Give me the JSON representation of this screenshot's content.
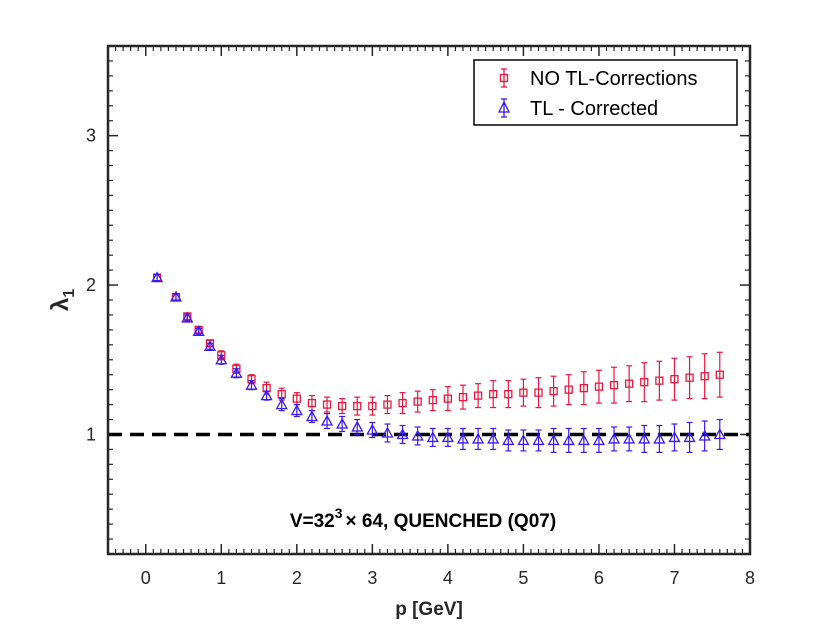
{
  "chart_data": {
    "type": "scatter",
    "xlabel": "p [GeV]",
    "ylabel": "λ",
    "ylabel_subscript": "1",
    "xlim": [
      -0.5,
      8
    ],
    "ylim": [
      0.2,
      3.6
    ],
    "xticks": [
      0,
      1,
      2,
      3,
      4,
      5,
      6,
      7,
      8
    ],
    "xtick_labels": [
      "0",
      "1",
      "2",
      "3",
      "4",
      "5",
      "6",
      "7",
      "8"
    ],
    "yticks": [
      1,
      2,
      3
    ],
    "ytick_labels": [
      "1",
      "2",
      "3"
    ],
    "reference_line": {
      "y": 1,
      "style": "dashed",
      "color": "#000000"
    },
    "annotation": {
      "prefix": "V=32",
      "superscript": "3",
      "suffix": "× 64, QUENCHED (Q07)"
    },
    "legend_position": "top-right",
    "series": [
      {
        "name": "NO TL-Corrections",
        "marker": "square",
        "color": "#e8173e",
        "x": [
          0.15,
          0.4,
          0.55,
          0.7,
          0.85,
          1.0,
          1.2,
          1.4,
          1.6,
          1.8,
          2.0,
          2.2,
          2.4,
          2.6,
          2.8,
          3.0,
          3.2,
          3.4,
          3.6,
          3.8,
          4.0,
          4.2,
          4.4,
          4.6,
          4.8,
          5.0,
          5.2,
          5.4,
          5.6,
          5.8,
          6.0,
          6.2,
          6.4,
          6.6,
          6.8,
          7.0,
          7.2,
          7.4,
          7.6
        ],
        "y": [
          2.05,
          1.92,
          1.79,
          1.7,
          1.61,
          1.53,
          1.44,
          1.37,
          1.31,
          1.27,
          1.24,
          1.21,
          1.2,
          1.19,
          1.19,
          1.19,
          1.2,
          1.21,
          1.22,
          1.23,
          1.24,
          1.25,
          1.26,
          1.27,
          1.27,
          1.28,
          1.28,
          1.29,
          1.3,
          1.31,
          1.32,
          1.33,
          1.34,
          1.35,
          1.36,
          1.37,
          1.38,
          1.39,
          1.4
        ],
        "err": [
          0.02,
          0.02,
          0.02,
          0.02,
          0.02,
          0.03,
          0.03,
          0.03,
          0.04,
          0.04,
          0.04,
          0.05,
          0.05,
          0.05,
          0.06,
          0.06,
          0.06,
          0.07,
          0.07,
          0.07,
          0.08,
          0.08,
          0.08,
          0.09,
          0.09,
          0.09,
          0.1,
          0.1,
          0.1,
          0.11,
          0.11,
          0.12,
          0.12,
          0.13,
          0.13,
          0.14,
          0.14,
          0.15,
          0.15
        ]
      },
      {
        "name": "TL - Corrected",
        "marker": "triangle",
        "color": "#3a18f0",
        "x": [
          0.15,
          0.4,
          0.55,
          0.7,
          0.85,
          1.0,
          1.2,
          1.4,
          1.6,
          1.8,
          2.0,
          2.2,
          2.4,
          2.6,
          2.8,
          3.0,
          3.2,
          3.4,
          3.6,
          3.8,
          4.0,
          4.2,
          4.4,
          4.6,
          4.8,
          5.0,
          5.2,
          5.4,
          5.6,
          5.8,
          6.0,
          6.2,
          6.4,
          6.6,
          6.8,
          7.0,
          7.2,
          7.4,
          7.6
        ],
        "y": [
          2.05,
          1.92,
          1.78,
          1.69,
          1.59,
          1.5,
          1.41,
          1.33,
          1.26,
          1.2,
          1.16,
          1.12,
          1.09,
          1.07,
          1.05,
          1.03,
          1.01,
          1.0,
          0.99,
          0.98,
          0.98,
          0.97,
          0.97,
          0.97,
          0.96,
          0.96,
          0.96,
          0.96,
          0.96,
          0.96,
          0.96,
          0.97,
          0.97,
          0.97,
          0.97,
          0.98,
          0.98,
          0.99,
          1.0
        ],
        "err": [
          0.02,
          0.02,
          0.02,
          0.02,
          0.02,
          0.03,
          0.03,
          0.03,
          0.03,
          0.04,
          0.04,
          0.04,
          0.05,
          0.05,
          0.05,
          0.05,
          0.06,
          0.06,
          0.06,
          0.06,
          0.06,
          0.07,
          0.07,
          0.07,
          0.07,
          0.07,
          0.07,
          0.08,
          0.08,
          0.08,
          0.08,
          0.08,
          0.08,
          0.09,
          0.09,
          0.09,
          0.1,
          0.1,
          0.1
        ]
      }
    ]
  }
}
